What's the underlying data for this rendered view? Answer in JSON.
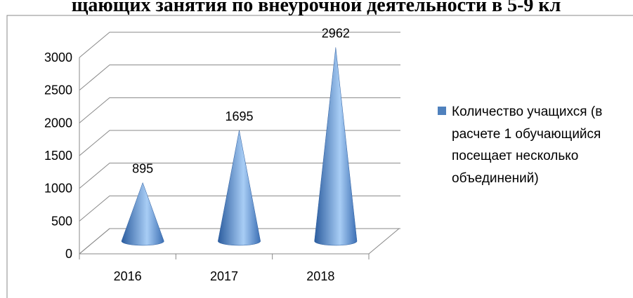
{
  "chart_data": {
    "type": "bar",
    "title": "щающих занятия по внеурочной деятельности в 5-9 кл",
    "categories": [
      "2016",
      "2017",
      "2018"
    ],
    "series": [
      {
        "name": "Количество учащихся (в расчете 1 обучающийся посещает несколько объединений)",
        "color": "#4f81bd",
        "values": [
          895,
          1695,
          2962
        ]
      }
    ],
    "ylim": [
      0,
      3000
    ],
    "yticks": [
      0,
      500,
      1000,
      1500,
      2000,
      2500,
      3000
    ],
    "grid": true,
    "legend": "right"
  }
}
